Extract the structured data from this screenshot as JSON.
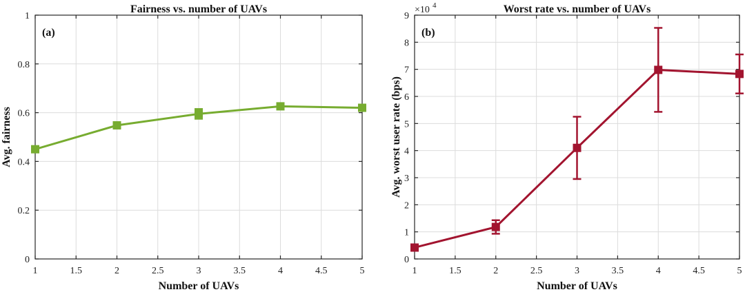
{
  "chart_data": [
    {
      "type": "line",
      "panel_label": "(a)",
      "title": "Fairness vs. number of UAVs",
      "xlabel": "Number of UAVs",
      "ylabel": "Avg. fairness",
      "xlim": [
        1,
        5
      ],
      "ylim": [
        0,
        1
      ],
      "xticks": [
        1,
        1.5,
        2,
        2.5,
        3,
        3.5,
        4,
        4.5,
        5
      ],
      "xtick_labels": [
        "1",
        "1.5",
        "2",
        "2.5",
        "3",
        "3.5",
        "4",
        "4.5",
        "5"
      ],
      "yticks": [
        0,
        0.2,
        0.4,
        0.6,
        0.8,
        1
      ],
      "ytick_labels": [
        "0",
        "0.2",
        "0.4",
        "0.6",
        "0.8",
        "1"
      ],
      "grid": true,
      "series": [
        {
          "name": "fairness",
          "color": "#77ac30",
          "x": [
            1,
            2,
            3,
            4,
            5
          ],
          "values": [
            0.45,
            0.548,
            0.595,
            0.626,
            0.62
          ],
          "err": [
            0.008,
            0.012,
            0.02,
            0.012,
            0.01
          ]
        }
      ]
    },
    {
      "type": "line",
      "panel_label": "(b)",
      "title": "Worst rate vs. number of UAVs",
      "xlabel": "Number of UAVs",
      "ylabel": "Avg. worst user rate (bps)",
      "exponent_label": "×10",
      "exponent_power": "4",
      "xlim": [
        1,
        5
      ],
      "ylim": [
        0,
        9
      ],
      "xticks": [
        1,
        1.5,
        2,
        2.5,
        3,
        3.5,
        4,
        4.5,
        5
      ],
      "xtick_labels": [
        "1",
        "1.5",
        "2",
        "2.5",
        "3",
        "3.5",
        "4",
        "4.5",
        "5"
      ],
      "yticks": [
        0,
        1,
        2,
        3,
        4,
        5,
        6,
        7,
        8,
        9
      ],
      "ytick_labels": [
        "0",
        "1",
        "2",
        "3",
        "4",
        "5",
        "6",
        "7",
        "8",
        "9"
      ],
      "grid": true,
      "series": [
        {
          "name": "worst rate",
          "color": "#a2142f",
          "x": [
            1,
            2,
            3,
            4,
            5
          ],
          "values": [
            0.42,
            1.18,
            4.1,
            6.98,
            6.83
          ],
          "err": [
            0.12,
            0.25,
            1.15,
            1.55,
            0.72
          ]
        }
      ]
    }
  ]
}
